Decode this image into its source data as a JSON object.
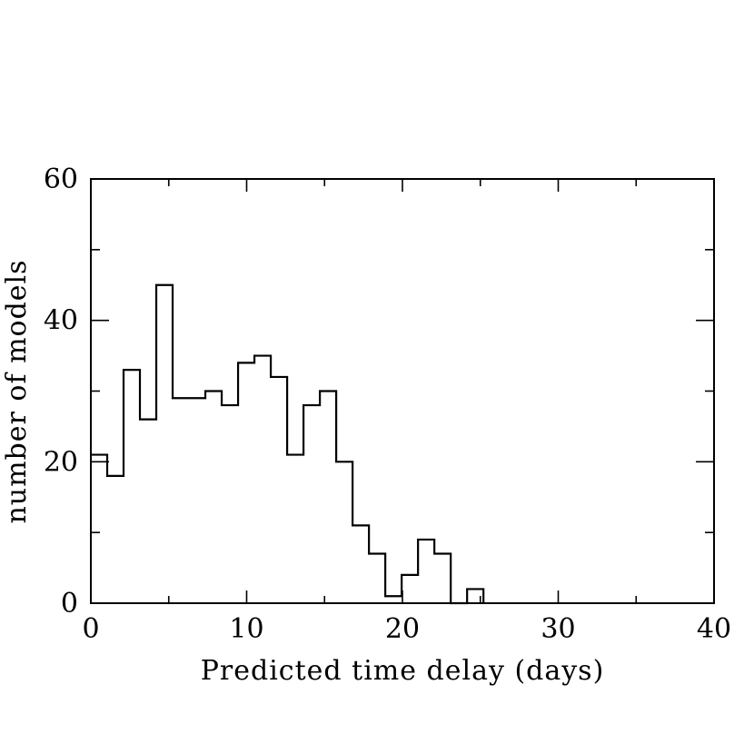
{
  "chart_data": {
    "type": "histogram",
    "title": "",
    "xlabel": "Predicted time delay (days)",
    "ylabel": "number of models",
    "xlim": [
      0,
      40
    ],
    "ylim": [
      0,
      60
    ],
    "x_ticks": [
      0,
      10,
      20,
      30,
      40
    ],
    "y_ticks": [
      0,
      20,
      40,
      60
    ],
    "x_minor_step": 5,
    "y_minor_step": 10,
    "bin_width": 1.05,
    "bin_edges": [
      0,
      1.05,
      2.1,
      3.15,
      4.2,
      5.25,
      6.3,
      7.35,
      8.4,
      9.45,
      10.5,
      11.55,
      12.6,
      13.65,
      14.7,
      15.75,
      16.8,
      17.85,
      18.9,
      19.95,
      21.0,
      22.05,
      23.1,
      24.15,
      25.2
    ],
    "counts": [
      21,
      18,
      33,
      26,
      45,
      29,
      29,
      30,
      28,
      34,
      35,
      32,
      21,
      28,
      30,
      20,
      11,
      7,
      1,
      4,
      9,
      7,
      0,
      2
    ],
    "grid": false,
    "legend": "none"
  }
}
